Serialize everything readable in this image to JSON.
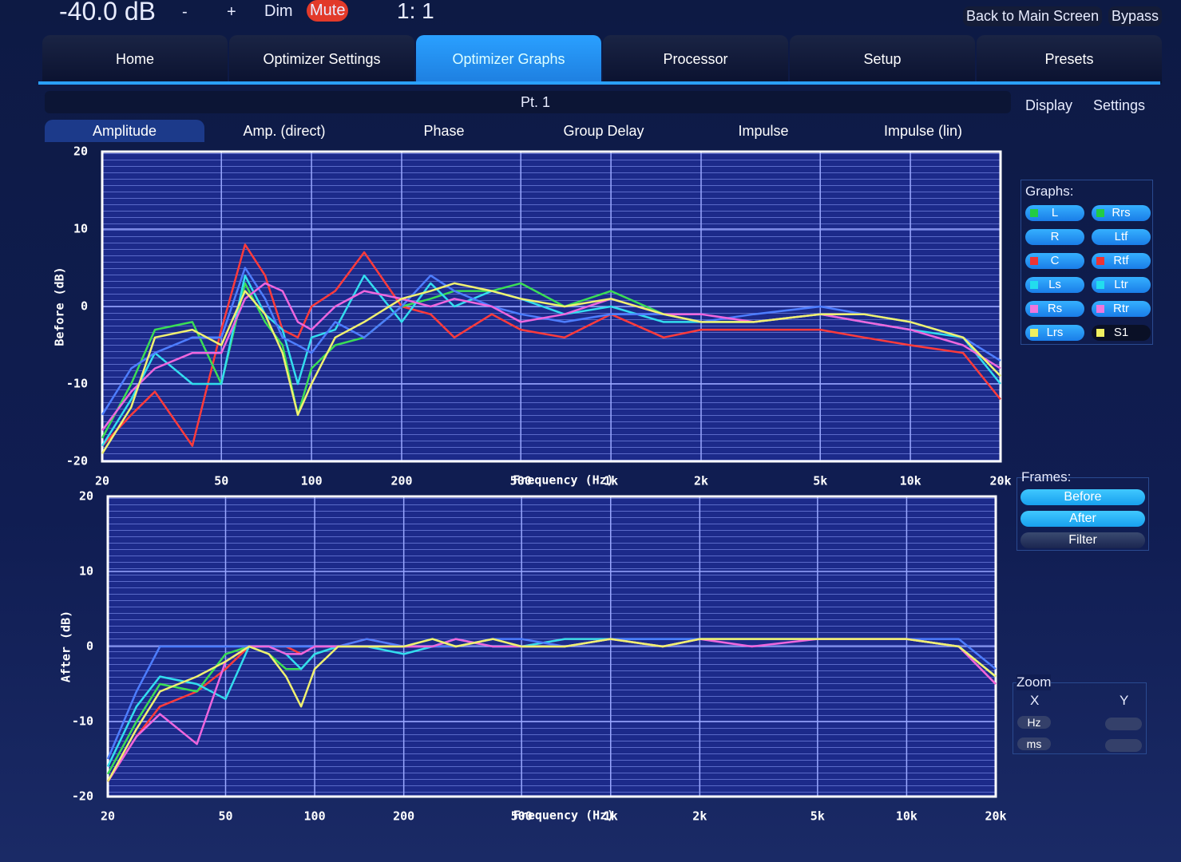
{
  "top_bar": {
    "volume": "-40.0 dB",
    "minus": "-",
    "plus": "+",
    "dim": "Dim",
    "mute": "Mute",
    "ratio": "1: 1",
    "back": "Back to Main Screen",
    "bypass": "Bypass"
  },
  "tabs": [
    "Home",
    "Optimizer Settings",
    "Optimizer Graphs",
    "Processor",
    "Setup",
    "Presets"
  ],
  "pane": {
    "title": "Pt. 1",
    "display": "Display",
    "settings": "Settings"
  },
  "subtabs": [
    "Amplitude",
    "Amp. (direct)",
    "Phase",
    "Group Delay",
    "Impulse",
    "Impulse (lin)"
  ],
  "graphs": {
    "label": "Graphs:",
    "buttons": [
      {
        "label": "L",
        "color": "#22cc44"
      },
      {
        "label": "Rrs",
        "color": "#22cc44"
      },
      {
        "label": "R"
      },
      {
        "label": "Ltf"
      },
      {
        "label": "C",
        "color": "#ee3333"
      },
      {
        "label": "Rtf",
        "color": "#ee3333"
      },
      {
        "label": "Ls",
        "color": "#22ddee"
      },
      {
        "label": "Ltr",
        "color": "#22ddee"
      },
      {
        "label": "Rs",
        "color": "#ee77dd"
      },
      {
        "label": "Rtr",
        "color": "#ee77dd"
      },
      {
        "label": "Lrs",
        "color": "#f0f060"
      },
      {
        "label": "S1",
        "color": "#f0f060"
      }
    ]
  },
  "frames": {
    "label": "Frames:",
    "buttons": [
      "Before",
      "After",
      "Filter"
    ]
  },
  "zoom": {
    "label": "Zoom",
    "x": "X",
    "y": "Y",
    "hz": "Hz",
    "ms": "ms"
  },
  "chart_data": [
    {
      "type": "line",
      "ylabel": "Before (dB)",
      "xlabel": "Frequency (Hz)",
      "log_x": true,
      "grid": true,
      "xlim": [
        20,
        20000
      ],
      "ylim": [
        -20,
        20
      ],
      "xticks": [
        20,
        50,
        100,
        200,
        500,
        {
          "value": 1000,
          "label": "1k"
        },
        {
          "value": 2000,
          "label": "2k"
        },
        {
          "value": 5000,
          "label": "5k"
        },
        {
          "value": 10000,
          "label": "10k"
        },
        {
          "value": 20000,
          "label": "20k"
        }
      ],
      "yticks": [
        -20,
        -10,
        0,
        10,
        20
      ],
      "x": [
        20,
        25,
        30,
        40,
        50,
        60,
        70,
        80,
        90,
        100,
        120,
        150,
        200,
        250,
        300,
        400,
        500,
        700,
        1000,
        1500,
        2000,
        3000,
        5000,
        7000,
        10000,
        15000,
        20000
      ],
      "series": [
        {
          "color": "#ff3b3b",
          "values": [
            -18,
            -14,
            -11,
            -18,
            -3,
            8,
            4,
            -3,
            -4,
            0,
            2,
            7,
            0,
            -1,
            -4,
            -1,
            -3,
            -4,
            -1,
            -4,
            -3,
            -3,
            -3,
            -4,
            -5,
            -6,
            -12
          ]
        },
        {
          "color": "#3bdd55",
          "values": [
            -17,
            -10,
            -3,
            -2,
            -10,
            3,
            -2,
            -5,
            -14,
            -8,
            -5,
            -4,
            0,
            1,
            2,
            2,
            3,
            0,
            2,
            -1,
            -2,
            -2,
            -1,
            -1,
            -2,
            -4,
            -9
          ]
        },
        {
          "color": "#33ddee",
          "values": [
            -18,
            -12,
            -6,
            -10,
            -10,
            4,
            -1,
            -3,
            -10,
            -4,
            -3,
            4,
            -2,
            3,
            0,
            2,
            1,
            -1,
            0,
            -2,
            -2,
            -2,
            -1,
            -2,
            -3,
            -4,
            -10
          ]
        },
        {
          "color": "#4d7dff",
          "values": [
            -14,
            -8,
            -6,
            -4,
            -4,
            5,
            1,
            -4,
            -5,
            -6,
            -2,
            -4,
            0,
            4,
            2,
            0,
            -1,
            -2,
            -1,
            -1,
            -2,
            -1,
            0,
            -1,
            -2,
            -4,
            -7
          ]
        },
        {
          "color": "#ee66dd",
          "values": [
            -16,
            -11,
            -8,
            -6,
            -6,
            1,
            3,
            2,
            -2,
            -3,
            0,
            2,
            1,
            0,
            1,
            0,
            -2,
            -1,
            1,
            -1,
            -1,
            -2,
            -1,
            -2,
            -3,
            -5,
            -8
          ]
        },
        {
          "color": "#f0f070",
          "values": [
            -19,
            -13,
            -4,
            -3,
            -5,
            2,
            -1,
            -6,
            -14,
            -10,
            -4,
            -2,
            1,
            2,
            3,
            2,
            1,
            0,
            1,
            -1,
            -2,
            -2,
            -1,
            -1,
            -2,
            -4,
            -9
          ]
        }
      ]
    },
    {
      "type": "line",
      "ylabel": "After (dB)",
      "xlabel": "Frequency (Hz)",
      "log_x": true,
      "grid": true,
      "xlim": [
        20,
        20000
      ],
      "ylim": [
        -20,
        20
      ],
      "xticks": [
        20,
        50,
        100,
        200,
        500,
        {
          "value": 1000,
          "label": "1k"
        },
        {
          "value": 2000,
          "label": "2k"
        },
        {
          "value": 5000,
          "label": "5k"
        },
        {
          "value": 10000,
          "label": "10k"
        },
        {
          "value": 20000,
          "label": "20k"
        }
      ],
      "yticks": [
        -20,
        -10,
        0,
        10,
        20
      ],
      "x": [
        20,
        25,
        30,
        40,
        50,
        60,
        70,
        80,
        90,
        100,
        120,
        150,
        200,
        250,
        300,
        400,
        500,
        700,
        1000,
        1500,
        2000,
        3000,
        5000,
        7000,
        10000,
        15000,
        20000
      ],
      "series": [
        {
          "color": "#ff3b3b",
          "values": [
            -18,
            -12,
            -8,
            -6,
            -3,
            0,
            0,
            0,
            -1,
            0,
            0,
            1,
            0,
            0,
            0,
            1,
            0,
            1,
            1,
            0,
            1,
            1,
            1,
            1,
            1,
            0,
            -5
          ]
        },
        {
          "color": "#3bdd55",
          "values": [
            -17,
            -10,
            -5,
            -6,
            -1,
            0,
            -1,
            -3,
            -3,
            -1,
            0,
            0,
            0,
            1,
            0,
            1,
            0,
            0,
            1,
            0,
            1,
            1,
            1,
            1,
            1,
            0,
            -4
          ]
        },
        {
          "color": "#33ddee",
          "values": [
            -16,
            -8,
            -4,
            -5,
            -7,
            0,
            0,
            -1,
            -3,
            -1,
            0,
            0,
            -1,
            0,
            1,
            0,
            0,
            1,
            1,
            1,
            1,
            1,
            1,
            1,
            1,
            0,
            -4
          ]
        },
        {
          "color": "#4d7dff",
          "values": [
            -15,
            -6,
            0,
            0,
            0,
            0,
            0,
            0,
            0,
            0,
            0,
            1,
            0,
            0,
            0,
            1,
            1,
            0,
            1,
            1,
            1,
            1,
            1,
            1,
            1,
            1,
            -3
          ]
        },
        {
          "color": "#ee66dd",
          "values": [
            -18,
            -12,
            -9,
            -13,
            -2,
            0,
            0,
            -1,
            -1,
            0,
            0,
            0,
            0,
            0,
            1,
            0,
            0,
            0,
            1,
            0,
            1,
            0,
            1,
            1,
            1,
            0,
            -5
          ]
        },
        {
          "color": "#f0f070",
          "values": [
            -18,
            -11,
            -6,
            -4,
            -2,
            0,
            -1,
            -4,
            -8,
            -3,
            0,
            0,
            0,
            1,
            0,
            1,
            0,
            0,
            1,
            0,
            1,
            1,
            1,
            1,
            1,
            0,
            -4
          ]
        }
      ]
    }
  ]
}
